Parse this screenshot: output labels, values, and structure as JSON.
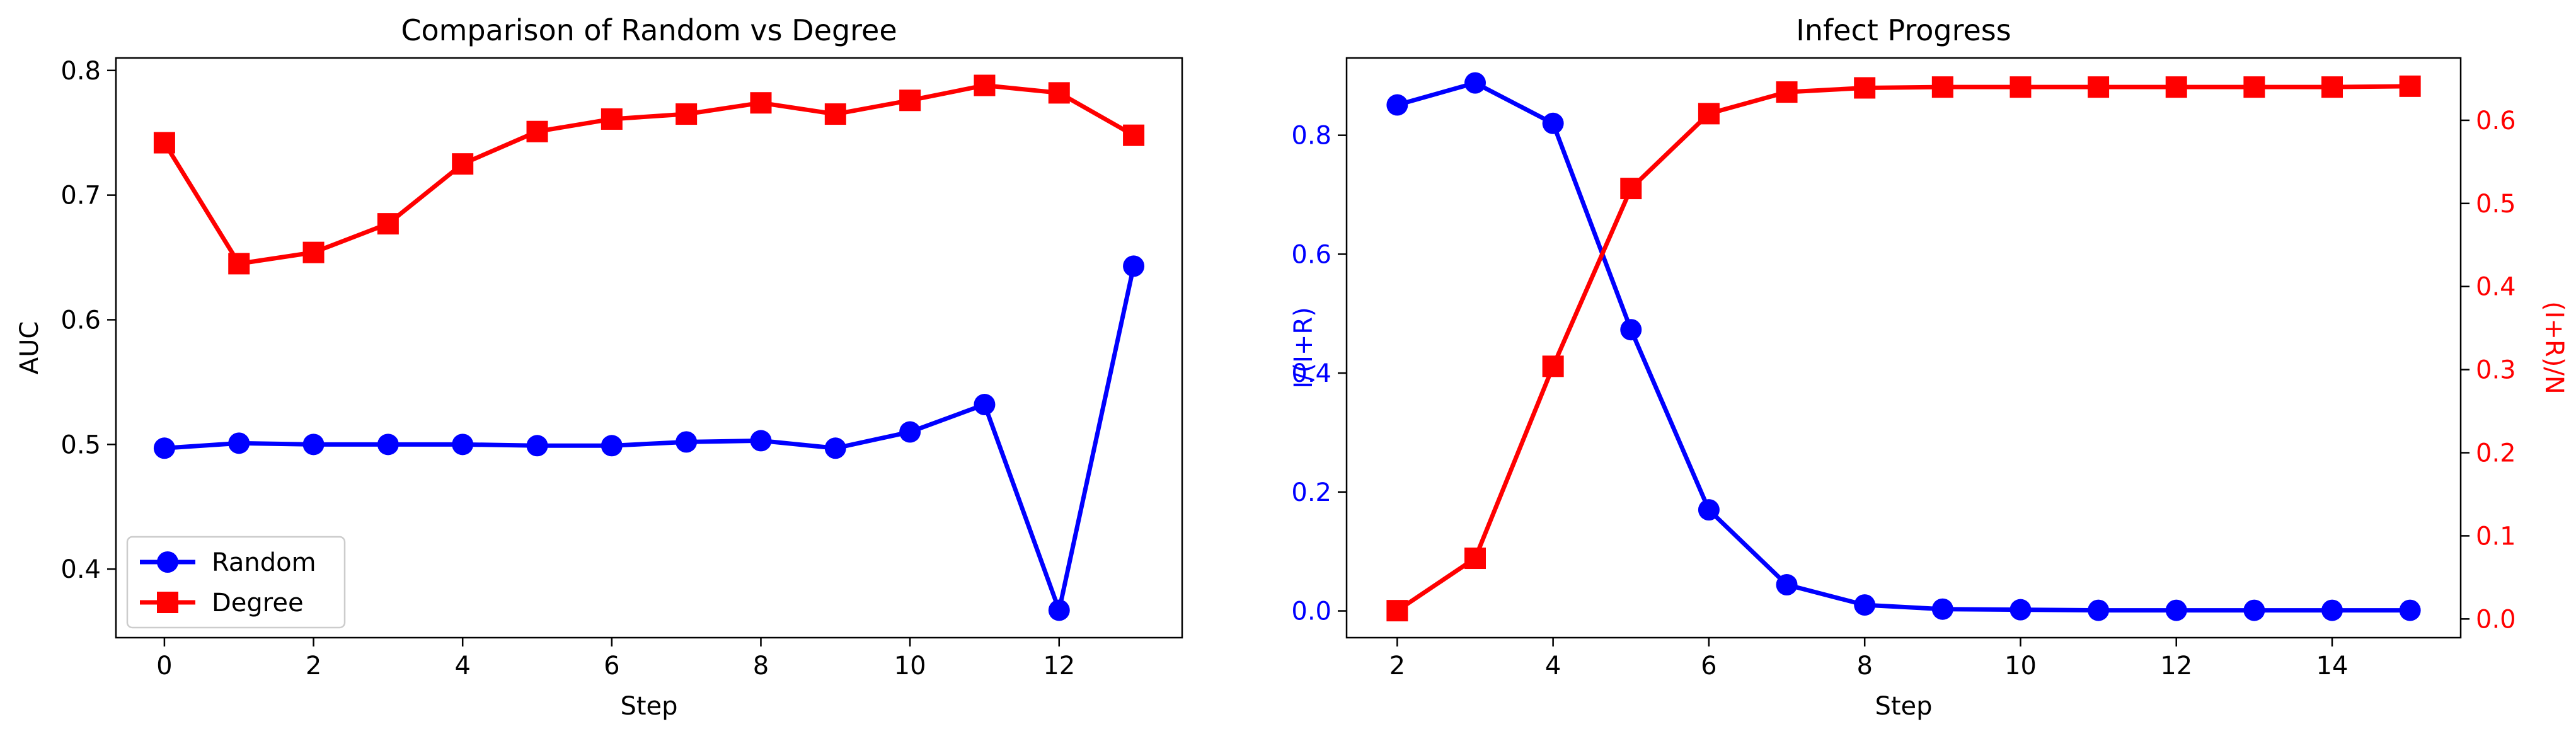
{
  "chart_data": [
    {
      "type": "line",
      "title": "Comparison of Random vs Degree",
      "xlabel": "Step",
      "ylabel": "AUC",
      "xlim": [
        -0.65,
        13.65
      ],
      "ylim": [
        0.345,
        0.81
      ],
      "xticks": [
        0,
        2,
        4,
        6,
        8,
        10,
        12
      ],
      "xtick_labels": [
        "0",
        "2",
        "4",
        "6",
        "8",
        "10",
        "12"
      ],
      "yticks": [
        0.4,
        0.5,
        0.6,
        0.7,
        0.8
      ],
      "ytick_labels": [
        "0.4",
        "0.5",
        "0.6",
        "0.7",
        "0.8"
      ],
      "grid": false,
      "legend": "lower-left",
      "x": [
        0,
        1,
        2,
        3,
        4,
        5,
        6,
        7,
        8,
        9,
        10,
        11,
        12,
        13
      ],
      "series": [
        {
          "name": "Random",
          "color": "#0000ff",
          "marker": "circle",
          "values": [
            0.497,
            0.501,
            0.5,
            0.5,
            0.5,
            0.499,
            0.499,
            0.502,
            0.503,
            0.497,
            0.51,
            0.532,
            0.367,
            0.643
          ]
        },
        {
          "name": "Degree",
          "color": "#ff0000",
          "marker": "square",
          "values": [
            0.742,
            0.645,
            0.654,
            0.677,
            0.725,
            0.751,
            0.761,
            0.765,
            0.774,
            0.765,
            0.776,
            0.788,
            0.782,
            0.748
          ]
        }
      ]
    },
    {
      "type": "line",
      "title": "Infect Progress",
      "xlabel": "Step",
      "xlim": [
        1.35,
        15.65
      ],
      "xticks": [
        2,
        4,
        6,
        8,
        10,
        12,
        14
      ],
      "xtick_labels": [
        "2",
        "4",
        "6",
        "8",
        "10",
        "12",
        "14"
      ],
      "grid": false,
      "x": [
        2,
        3,
        4,
        5,
        6,
        7,
        8,
        9,
        10,
        11,
        12,
        13,
        14,
        15
      ],
      "left_axis": {
        "label": "I/(I+R)",
        "color": "#0000ff",
        "ylim": [
          -0.045,
          0.93
        ],
        "yticks": [
          0.0,
          0.2,
          0.4,
          0.6,
          0.8
        ],
        "ytick_labels": [
          "0.0",
          "0.2",
          "0.4",
          "0.6",
          "0.8"
        ]
      },
      "right_axis": {
        "label": "(I+R)/N",
        "color": "#ff0000",
        "ylim": [
          -0.0225,
          0.675
        ],
        "yticks": [
          0.0,
          0.1,
          0.2,
          0.3,
          0.4,
          0.5,
          0.6
        ],
        "ytick_labels": [
          "0.0",
          "0.1",
          "0.2",
          "0.3",
          "0.4",
          "0.5",
          "0.6"
        ]
      },
      "series": [
        {
          "axis": "left",
          "color": "#0000ff",
          "marker": "circle",
          "values": [
            0.851,
            0.888,
            0.82,
            0.473,
            0.17,
            0.044,
            0.01,
            0.003,
            0.002,
            0.001,
            0.001,
            0.001,
            0.001,
            0.001
          ]
        },
        {
          "axis": "right",
          "color": "#ff0000",
          "marker": "square",
          "values": [
            0.01,
            0.073,
            0.304,
            0.518,
            0.608,
            0.634,
            0.639,
            0.64,
            0.64,
            0.64,
            0.64,
            0.64,
            0.64,
            0.641
          ]
        }
      ]
    }
  ]
}
